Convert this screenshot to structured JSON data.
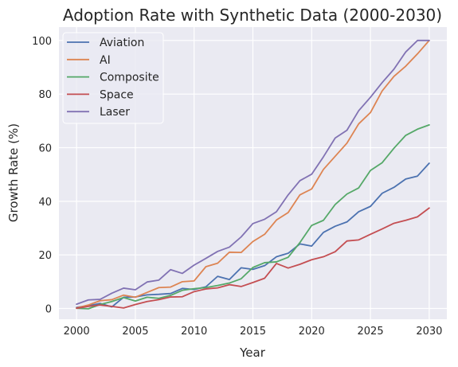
{
  "chart_data": {
    "type": "line",
    "title": "Adoption Rate with Synthetic Data (2000-2030)",
    "xlabel": "Year",
    "ylabel": "Growth Rate (%)",
    "xlim": [
      1998.5,
      2031.5
    ],
    "ylim": [
      -4,
      105
    ],
    "xticks": [
      2000,
      2005,
      2010,
      2015,
      2020,
      2025,
      2030
    ],
    "yticks": [
      0,
      20,
      40,
      60,
      80,
      100
    ],
    "grid": true,
    "legend_position": "top-left",
    "x": [
      2000,
      2001,
      2002,
      2003,
      2004,
      2005,
      2006,
      2007,
      2008,
      2009,
      2010,
      2011,
      2012,
      2013,
      2014,
      2015,
      2016,
      2017,
      2018,
      2019,
      2020,
      2021,
      2022,
      2023,
      2024,
      2025,
      2026,
      2027,
      2028,
      2029,
      2030
    ],
    "series": [
      {
        "name": "Aviation",
        "color": "#4c72b0",
        "values": [
          0.4,
          1.0,
          1.9,
          0.6,
          4.2,
          4.3,
          5.1,
          5.3,
          5.6,
          7.5,
          7.1,
          8.1,
          12.0,
          10.8,
          15.2,
          14.6,
          16.0,
          19.3,
          20.6,
          24.1,
          23.3,
          28.4,
          30.7,
          32.3,
          36.1,
          38.1,
          43.0,
          45.2,
          48.3,
          49.4,
          54.2
        ]
      },
      {
        "name": "AI",
        "color": "#dd8452",
        "values": [
          0.2,
          1.3,
          2.9,
          3.3,
          5.0,
          4.2,
          6.0,
          7.8,
          8.0,
          10.0,
          10.3,
          15.6,
          16.9,
          21.0,
          20.9,
          25.0,
          27.7,
          33.0,
          35.8,
          42.4,
          44.6,
          51.9,
          56.8,
          61.7,
          68.9,
          73.1,
          81.2,
          86.6,
          90.4,
          95.0,
          100.0
        ]
      },
      {
        "name": "Composite",
        "color": "#55a868",
        "values": [
          0.1,
          -0.1,
          1.5,
          2.6,
          4.1,
          2.8,
          4.2,
          3.8,
          4.9,
          6.8,
          7.4,
          7.8,
          8.6,
          9.5,
          11.1,
          15.3,
          17.1,
          17.4,
          19.1,
          24.6,
          31.0,
          32.9,
          38.8,
          42.7,
          45.0,
          51.5,
          54.4,
          59.8,
          64.6,
          66.9,
          68.5
        ]
      },
      {
        "name": "Space",
        "color": "#c44e52",
        "values": [
          0.1,
          0.8,
          1.3,
          0.8,
          0.2,
          1.5,
          2.6,
          3.3,
          4.3,
          4.4,
          6.3,
          7.3,
          7.7,
          8.9,
          8.2,
          9.7,
          11.3,
          16.8,
          15.1,
          16.5,
          18.2,
          19.3,
          21.2,
          25.2,
          25.6,
          27.7,
          29.7,
          31.8,
          32.9,
          34.2,
          37.5
        ]
      },
      {
        "name": "Laser",
        "color": "#8172b3",
        "values": [
          1.6,
          3.2,
          3.4,
          5.7,
          7.6,
          7.0,
          9.9,
          10.6,
          14.5,
          13.1,
          16.2,
          18.7,
          21.3,
          22.9,
          26.7,
          31.7,
          33.3,
          36.1,
          42.4,
          47.7,
          50.1,
          56.6,
          63.6,
          66.5,
          73.8,
          78.8,
          84.3,
          89.3,
          95.7,
          100.0,
          100.0
        ]
      }
    ]
  }
}
